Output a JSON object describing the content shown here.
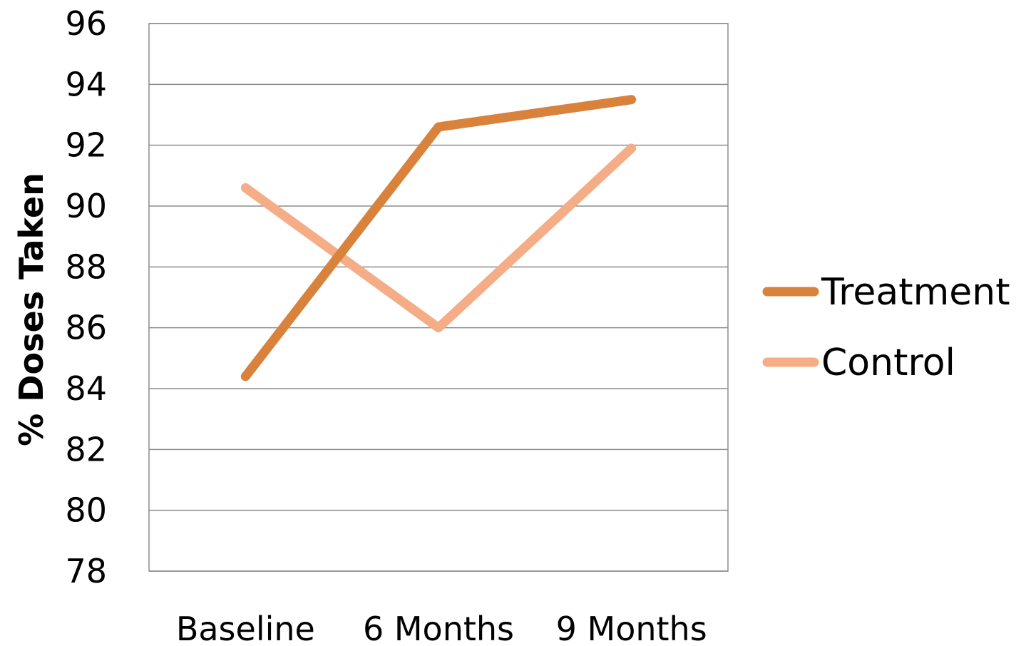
{
  "chart_data": {
    "type": "line",
    "categories": [
      "Baseline",
      "6 Months",
      "9 Months"
    ],
    "series": [
      {
        "name": "Treatment",
        "values": [
          84.4,
          92.6,
          93.5
        ],
        "color": "#d9823b"
      },
      {
        "name": "Control",
        "values": [
          90.6,
          86.0,
          91.9
        ],
        "color": "#f4ad86"
      }
    ],
    "ylabel": "% Doses Taken",
    "ylim": [
      78,
      96
    ],
    "yticks": [
      78,
      80,
      82,
      84,
      86,
      88,
      90,
      92,
      94,
      96
    ],
    "grid": true,
    "legend": "right"
  }
}
